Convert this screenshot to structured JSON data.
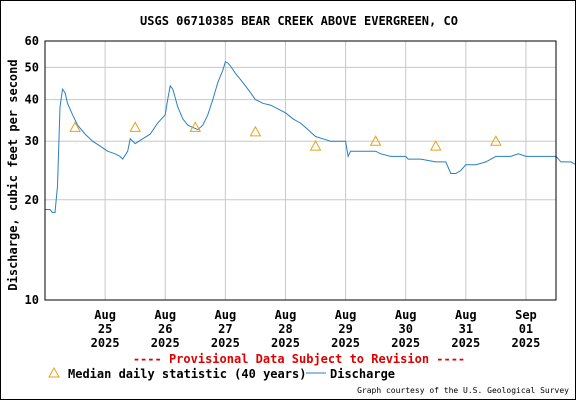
{
  "chart_data": {
    "type": "line",
    "title": "USGS 06710385 BEAR CREEK ABOVE EVERGREEN, CO",
    "ylabel": "Discharge, cubic feet per second",
    "xlabel": "",
    "y_scale": "log",
    "ylim": [
      10,
      60
    ],
    "y_ticks": [
      10,
      20,
      30,
      40,
      50,
      60
    ],
    "x_start": "2025-08-24T00:00",
    "x_end": "2025-09-01T12:00",
    "x_ticks": [
      {
        "date": "2025-08-25",
        "label": [
          "Aug",
          "25",
          "2025"
        ]
      },
      {
        "date": "2025-08-26",
        "label": [
          "Aug",
          "26",
          "2025"
        ]
      },
      {
        "date": "2025-08-27",
        "label": [
          "Aug",
          "27",
          "2025"
        ]
      },
      {
        "date": "2025-08-28",
        "label": [
          "Aug",
          "28",
          "2025"
        ]
      },
      {
        "date": "2025-08-29",
        "label": [
          "Aug",
          "29",
          "2025"
        ]
      },
      {
        "date": "2025-08-30",
        "label": [
          "Aug",
          "30",
          "2025"
        ]
      },
      {
        "date": "2025-08-31",
        "label": [
          "Aug",
          "31",
          "2025"
        ]
      },
      {
        "date": "2025-09-01",
        "label": [
          "Sep",
          "01",
          "2025"
        ]
      }
    ],
    "grid": true,
    "series": [
      {
        "name": "Discharge",
        "color": "#2a7fc0",
        "points": [
          [
            "2025-08-24T00:00",
            18.7
          ],
          [
            "2025-08-24T02:00",
            18.7
          ],
          [
            "2025-08-24T03:00",
            18.3
          ],
          [
            "2025-08-24T04:00",
            18.3
          ],
          [
            "2025-08-24T05:00",
            22.0
          ],
          [
            "2025-08-24T06:00",
            38.0
          ],
          [
            "2025-08-24T07:00",
            43.0
          ],
          [
            "2025-08-24T08:00",
            42.0
          ],
          [
            "2025-08-24T09:00",
            39.0
          ],
          [
            "2025-08-24T11:00",
            36.0
          ],
          [
            "2025-08-24T13:00",
            33.5
          ],
          [
            "2025-08-24T16:00",
            31.5
          ],
          [
            "2025-08-24T19:00",
            30.0
          ],
          [
            "2025-08-24T22:00",
            29.0
          ],
          [
            "2025-08-25T01:00",
            28.0
          ],
          [
            "2025-08-25T04:00",
            27.5
          ],
          [
            "2025-08-25T06:00",
            27.0
          ],
          [
            "2025-08-25T07:00",
            26.5
          ],
          [
            "2025-08-25T09:00",
            28.0
          ],
          [
            "2025-08-25T10:00",
            30.5
          ],
          [
            "2025-08-25T12:00",
            29.5
          ],
          [
            "2025-08-25T15:00",
            30.5
          ],
          [
            "2025-08-25T18:00",
            31.5
          ],
          [
            "2025-08-25T21:00",
            34.0
          ],
          [
            "2025-08-26T00:00",
            36.0
          ],
          [
            "2025-08-26T01:00",
            40.0
          ],
          [
            "2025-08-26T02:00",
            44.0
          ],
          [
            "2025-08-26T03:00",
            43.0
          ],
          [
            "2025-08-26T05:00",
            38.0
          ],
          [
            "2025-08-26T07:00",
            35.0
          ],
          [
            "2025-08-26T09:00",
            33.5
          ],
          [
            "2025-08-26T11:00",
            33.0
          ],
          [
            "2025-08-26T13:00",
            32.5
          ],
          [
            "2025-08-26T15:00",
            33.5
          ],
          [
            "2025-08-26T17:00",
            36.0
          ],
          [
            "2025-08-26T19:00",
            40.0
          ],
          [
            "2025-08-26T21:00",
            45.0
          ],
          [
            "2025-08-26T23:00",
            49.0
          ],
          [
            "2025-08-27T00:00",
            52.0
          ],
          [
            "2025-08-27T01:00",
            51.5
          ],
          [
            "2025-08-27T02:00",
            50.5
          ],
          [
            "2025-08-27T04:00",
            48.0
          ],
          [
            "2025-08-27T06:00",
            46.0
          ],
          [
            "2025-08-27T08:00",
            44.0
          ],
          [
            "2025-08-27T10:00",
            42.0
          ],
          [
            "2025-08-27T12:00",
            40.0
          ],
          [
            "2025-08-27T15:00",
            39.0
          ],
          [
            "2025-08-27T18:00",
            38.5
          ],
          [
            "2025-08-27T21:00",
            37.5
          ],
          [
            "2025-08-28T00:00",
            36.5
          ],
          [
            "2025-08-28T03:00",
            35.0
          ],
          [
            "2025-08-28T06:00",
            34.0
          ],
          [
            "2025-08-28T09:00",
            32.5
          ],
          [
            "2025-08-28T12:00",
            31.0
          ],
          [
            "2025-08-28T15:00",
            30.5
          ],
          [
            "2025-08-28T18:00",
            30.0
          ],
          [
            "2025-08-28T21:00",
            30.0
          ],
          [
            "2025-08-29T00:00",
            30.0
          ],
          [
            "2025-08-29T01:00",
            27.0
          ],
          [
            "2025-08-29T02:00",
            28.0
          ],
          [
            "2025-08-29T06:00",
            28.0
          ],
          [
            "2025-08-29T12:00",
            28.0
          ],
          [
            "2025-08-29T14:00",
            27.5
          ],
          [
            "2025-08-29T18:00",
            27.0
          ],
          [
            "2025-08-30T00:00",
            27.0
          ],
          [
            "2025-08-30T01:00",
            26.5
          ],
          [
            "2025-08-30T06:00",
            26.5
          ],
          [
            "2025-08-30T12:00",
            26.0
          ],
          [
            "2025-08-30T16:00",
            26.0
          ],
          [
            "2025-08-30T18:00",
            24.0
          ],
          [
            "2025-08-30T20:00",
            24.0
          ],
          [
            "2025-08-30T22:00",
            24.5
          ],
          [
            "2025-08-31T00:00",
            25.5
          ],
          [
            "2025-08-31T02:00",
            25.5
          ],
          [
            "2025-08-31T04:00",
            25.5
          ],
          [
            "2025-08-31T08:00",
            26.0
          ],
          [
            "2025-08-31T12:00",
            27.0
          ],
          [
            "2025-08-31T18:00",
            27.0
          ],
          [
            "2025-08-31T21:00",
            27.5
          ],
          [
            "2025-09-01T00:00",
            27.0
          ],
          [
            "2025-09-01T06:00",
            27.0
          ],
          [
            "2025-09-01T12:00",
            27.0
          ],
          [
            "2025-09-01T14:00",
            26.0
          ],
          [
            "2025-09-01T18:00",
            26.0
          ],
          [
            "2025-09-01T20:00",
            25.5
          ],
          [
            "2025-09-02T00:00",
            25.5
          ],
          [
            "2025-09-02T03:00",
            25.0
          ],
          [
            "2025-09-02T05:00",
            24.0
          ],
          [
            "2025-09-02T08:00",
            24.0
          ]
        ]
      },
      {
        "name": "Median daily statistic (40 years)",
        "color": "#e6a21a",
        "marker": "triangle",
        "points": [
          [
            "2025-08-24T12:00",
            33
          ],
          [
            "2025-08-25T12:00",
            33
          ],
          [
            "2025-08-26T12:00",
            33
          ],
          [
            "2025-08-27T12:00",
            32
          ],
          [
            "2025-08-28T12:00",
            29
          ],
          [
            "2025-08-29T12:00",
            30
          ],
          [
            "2025-08-30T12:00",
            29
          ],
          [
            "2025-08-31T12:00",
            30
          ]
        ]
      }
    ]
  },
  "notice": "---- Provisional Data Subject to Revision ----",
  "legend": {
    "median_label": "Median daily statistic (40 years)",
    "discharge_label": "Discharge"
  },
  "credit": "Graph courtesy of the U.S. Geological Survey",
  "colors": {
    "notice": "#dd0000",
    "grid": "#c8c8c8",
    "discharge": "#2a7fc0",
    "median": "#e6a21a"
  }
}
